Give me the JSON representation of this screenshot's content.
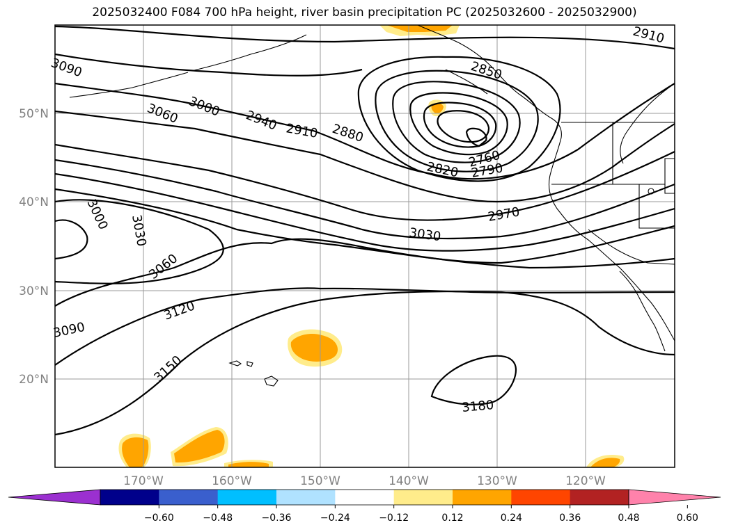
{
  "title": "2025032400 F084 700 hPa height, river basin precipitation PC (2025032600 - 2025032900)",
  "map": {
    "lat_labels": [
      "50°N",
      "40°N",
      "30°N",
      "20°N"
    ],
    "lon_labels": [
      "170°W",
      "160°W",
      "150°W",
      "140°W",
      "130°W",
      "120°W"
    ],
    "contour_labels": [
      "3090",
      "3060",
      "3000",
      "2940",
      "2910",
      "2880",
      "2850",
      "2910",
      "2820",
      "2760",
      "2790",
      "2970",
      "3030",
      "3000",
      "3030",
      "3060",
      "3120",
      "3090",
      "3150",
      "3180"
    ]
  },
  "colorbar": {
    "colors": [
      "#9b30d0",
      "#00008b",
      "#3a5fcd",
      "#00bfff",
      "#b0e2ff",
      "#ffffff",
      "#ffec8b",
      "#ffa500",
      "#ff4500",
      "#b22222",
      "#ff82ab"
    ],
    "ticks": [
      "−0.60",
      "−0.48",
      "−0.36",
      "−0.24",
      "−0.12",
      "0.12",
      "0.24",
      "0.36",
      "0.48",
      "0.60"
    ]
  }
}
